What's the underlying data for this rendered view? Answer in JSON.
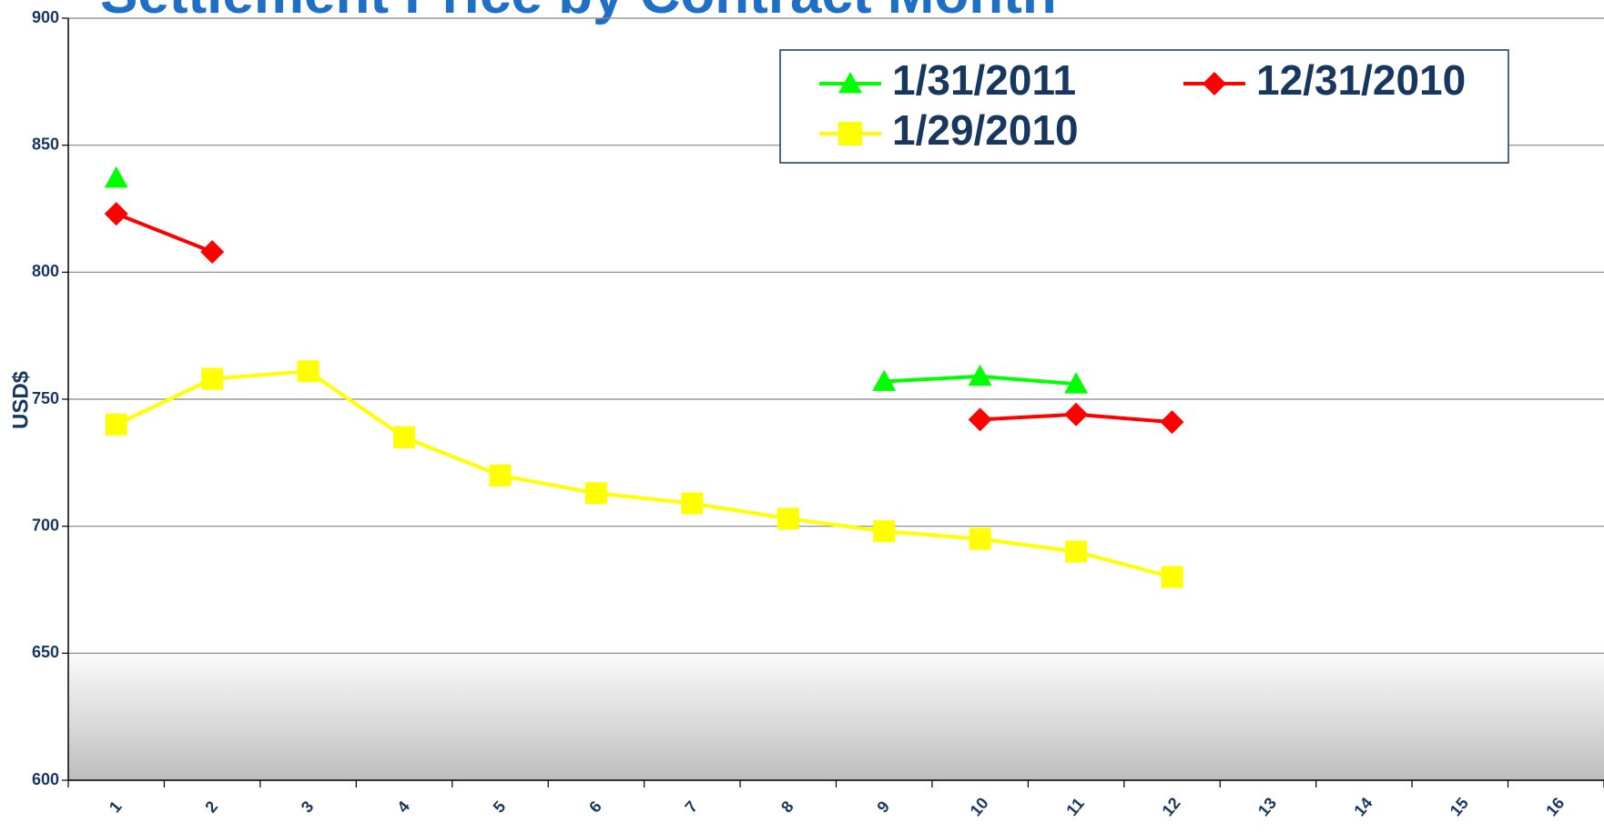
{
  "chart_data": {
    "type": "line",
    "title": "Settlement Price by Contract Month",
    "y_label": "USD$",
    "categories": [
      "1",
      "2",
      "3",
      "4",
      "5",
      "6",
      "7",
      "8",
      "9",
      "10",
      "11",
      "12",
      "13",
      "14",
      "15",
      "16"
    ],
    "series": [
      {
        "name": "1/31/2011",
        "color": "#00ff00",
        "marker": "triangle",
        "values": [
          837,
          null,
          null,
          null,
          null,
          null,
          null,
          null,
          757,
          759,
          756,
          null,
          null,
          null,
          null,
          null
        ]
      },
      {
        "name": "12/31/2010",
        "color": "#ff0000",
        "marker": "diamond",
        "values": [
          823,
          808,
          null,
          null,
          null,
          null,
          null,
          null,
          null,
          742,
          744,
          741,
          null,
          null,
          null,
          null
        ]
      },
      {
        "name": "1/29/2010",
        "color": "#ffff00",
        "marker": "square",
        "values": [
          740,
          758,
          761,
          735,
          720,
          713,
          709,
          703,
          698,
          695,
          690,
          680,
          null,
          null,
          null,
          null
        ]
      }
    ],
    "ylim": [
      600,
      900
    ],
    "yticks": [
      600,
      650,
      700,
      750,
      800,
      850,
      900
    ],
    "grid": true
  }
}
